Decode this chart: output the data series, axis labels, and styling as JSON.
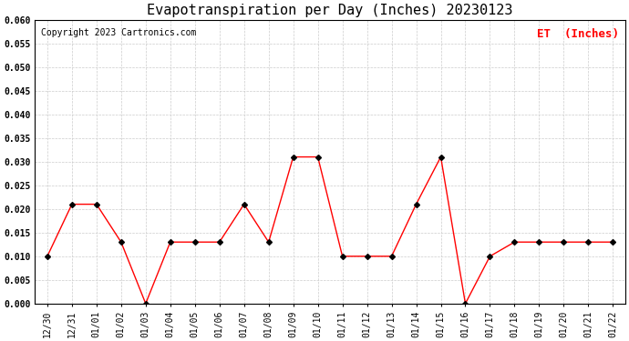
{
  "title": "Evapotranspiration per Day (Inches) 20230123",
  "copyright": "Copyright 2023 Cartronics.com",
  "legend_label": "ET  (Inches)",
  "x_labels": [
    "12/30",
    "12/31",
    "01/01",
    "01/02",
    "01/03",
    "01/04",
    "01/05",
    "01/06",
    "01/07",
    "01/08",
    "01/09",
    "01/10",
    "01/11",
    "01/12",
    "01/13",
    "01/14",
    "01/15",
    "01/16",
    "01/17",
    "01/18",
    "01/19",
    "01/20",
    "01/21",
    "01/22"
  ],
  "y_values": [
    0.01,
    0.021,
    0.021,
    0.013,
    0.0,
    0.013,
    0.013,
    0.013,
    0.021,
    0.013,
    0.031,
    0.031,
    0.01,
    0.01,
    0.01,
    0.021,
    0.031,
    0.0,
    0.01,
    0.013,
    0.013,
    0.013,
    0.013,
    0.013
  ],
  "ylim": [
    0.0,
    0.06
  ],
  "yticks": [
    0.0,
    0.005,
    0.01,
    0.015,
    0.02,
    0.025,
    0.03,
    0.035,
    0.04,
    0.045,
    0.05,
    0.055,
    0.06
  ],
  "line_color": "red",
  "marker": "D",
  "marker_size": 3,
  "marker_color": "black",
  "grid_color": "#cccccc",
  "background_color": "#ffffff",
  "title_fontsize": 11,
  "copyright_fontsize": 7,
  "legend_fontsize": 9,
  "legend_color": "red",
  "tick_fontsize": 7,
  "fig_width": 6.9,
  "fig_height": 3.75,
  "dpi": 100
}
